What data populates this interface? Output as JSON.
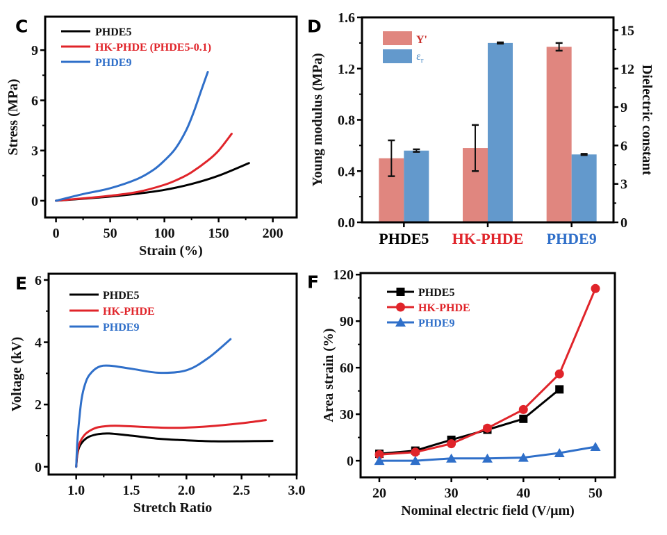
{
  "colors": {
    "black": "#000000",
    "red": "#e0242a",
    "blue": "#2f6fc9",
    "bar_red": "#e0867f",
    "bar_blue": "#6399cc",
    "errorbar": "#111111"
  },
  "chart_data": [
    {
      "panel": "C",
      "type": "line",
      "xlabel": "Strain (%)",
      "ylabel": "Stress (MPa)",
      "xlim": [
        -10,
        222
      ],
      "ylim": [
        -1,
        11
      ],
      "xticks": [
        0,
        50,
        100,
        150,
        200
      ],
      "yticks": [
        0,
        3,
        6,
        9
      ],
      "legend": "top-left",
      "series": [
        {
          "name": "PHDE5",
          "color": "#000000",
          "x": [
            0,
            25,
            50,
            75,
            100,
            125,
            150,
            178
          ],
          "y": [
            0,
            0.12,
            0.25,
            0.42,
            0.65,
            1.0,
            1.5,
            2.25
          ]
        },
        {
          "name": "HK-PHDE (PHDE5-0.1)",
          "color": "#e0242a",
          "x": [
            0,
            25,
            50,
            75,
            100,
            115,
            125,
            140,
            150,
            162
          ],
          "y": [
            0,
            0.14,
            0.3,
            0.52,
            0.95,
            1.35,
            1.7,
            2.4,
            3.0,
            4.0
          ]
        },
        {
          "name": "PHDE9",
          "color": "#2f6fc9",
          "x": [
            0,
            25,
            50,
            75,
            90,
            100,
            110,
            120,
            127,
            134,
            140
          ],
          "y": [
            0,
            0.4,
            0.75,
            1.3,
            1.85,
            2.4,
            3.1,
            4.2,
            5.3,
            6.6,
            7.7
          ]
        }
      ]
    },
    {
      "panel": "D",
      "type": "bar",
      "categories": [
        "PHDE5",
        "HK-PHDE",
        "PHDE9"
      ],
      "category_colors": [
        "#000000",
        "#e0242a",
        "#2f6fc9"
      ],
      "ylabel": "Young modulus (MPa)",
      "y2label": "Dielectric constant",
      "ylim": [
        0,
        1.6
      ],
      "y2lim": [
        0,
        16
      ],
      "yticks": [
        0.0,
        0.4,
        0.8,
        1.2,
        1.6
      ],
      "ytick_labels": [
        "0.0",
        "0.4",
        "0.8",
        "1.2",
        "1.6"
      ],
      "y2ticks": [
        0,
        3,
        6,
        9,
        12,
        15
      ],
      "legend": "top-left",
      "series": [
        {
          "name": "Y'",
          "axis": "left",
          "color": "#e0867f",
          "values": [
            0.5,
            0.58,
            1.37
          ],
          "err_low": [
            0.36,
            0.4,
            1.34
          ],
          "err_high": [
            0.64,
            0.76,
            1.4
          ]
        },
        {
          "name": "εr",
          "name_main": "ε",
          "name_sub": "r",
          "axis": "right",
          "color": "#6399cc",
          "values": [
            5.6,
            14.0,
            5.3
          ],
          "err_low": [
            5.5,
            13.95,
            5.25
          ],
          "err_high": [
            5.7,
            14.05,
            5.35
          ]
        }
      ]
    },
    {
      "panel": "E",
      "type": "line",
      "xlabel": "Stretch Ratio",
      "ylabel": "Voltage (kV)",
      "xlim": [
        0.75,
        3.0
      ],
      "ylim": [
        -0.25,
        6.2
      ],
      "xticks": [
        1.0,
        1.5,
        2.0,
        2.5,
        3.0
      ],
      "xtick_labels": [
        "1.0",
        "1.5",
        "2.0",
        "2.5",
        "3.0"
      ],
      "yticks": [
        0,
        2,
        4,
        6
      ],
      "legend": "top-left",
      "series": [
        {
          "name": "PHDE5",
          "color": "#000000",
          "x": [
            1.0,
            1.01,
            1.03,
            1.07,
            1.12,
            1.2,
            1.3,
            1.5,
            1.75,
            2.0,
            2.25,
            2.5,
            2.78
          ],
          "y": [
            0,
            0.4,
            0.65,
            0.85,
            0.97,
            1.05,
            1.07,
            1.0,
            0.9,
            0.85,
            0.82,
            0.82,
            0.83
          ]
        },
        {
          "name": "HK-PHDE",
          "color": "#e0242a",
          "x": [
            1.0,
            1.01,
            1.03,
            1.07,
            1.12,
            1.2,
            1.35,
            1.6,
            1.9,
            2.2,
            2.5,
            2.72
          ],
          "y": [
            0,
            0.45,
            0.75,
            1.0,
            1.15,
            1.27,
            1.32,
            1.28,
            1.25,
            1.3,
            1.4,
            1.5
          ]
        },
        {
          "name": "PHDE9",
          "color": "#2f6fc9",
          "x": [
            1.0,
            1.01,
            1.03,
            1.05,
            1.08,
            1.12,
            1.2,
            1.3,
            1.5,
            1.75,
            2.0,
            2.2,
            2.4
          ],
          "y": [
            0,
            0.8,
            1.6,
            2.2,
            2.65,
            2.95,
            3.2,
            3.25,
            3.15,
            3.02,
            3.1,
            3.5,
            4.1
          ]
        }
      ]
    },
    {
      "panel": "F",
      "type": "line",
      "xlabel": "Nominal electric field (V/μm)",
      "ylabel": "Area strain (%)",
      "xlim": [
        17.4,
        52.7
      ],
      "ylim": [
        -10.7,
        121
      ],
      "xticks": [
        20,
        30,
        40,
        50
      ],
      "yticks": [
        0,
        30,
        60,
        90,
        120
      ],
      "legend": "top-left",
      "series": [
        {
          "name": "PHDE5",
          "color": "#000000",
          "marker": "square",
          "x": [
            20,
            25,
            30,
            35,
            40,
            45
          ],
          "y": [
            4.5,
            6.5,
            13.5,
            20,
            27,
            46
          ]
        },
        {
          "name": "HK-PHDE",
          "color": "#e0242a",
          "marker": "circle",
          "x": [
            20,
            25,
            30,
            35,
            40,
            45,
            50
          ],
          "y": [
            4,
            5.5,
            11,
            21,
            33,
            56,
            111
          ]
        },
        {
          "name": "PHDE9",
          "color": "#2f6fc9",
          "marker": "triangle",
          "x": [
            20,
            25,
            30,
            35,
            40,
            45,
            50
          ],
          "y": [
            0,
            0,
            1.5,
            1.5,
            2,
            5,
            9
          ]
        }
      ]
    }
  ]
}
